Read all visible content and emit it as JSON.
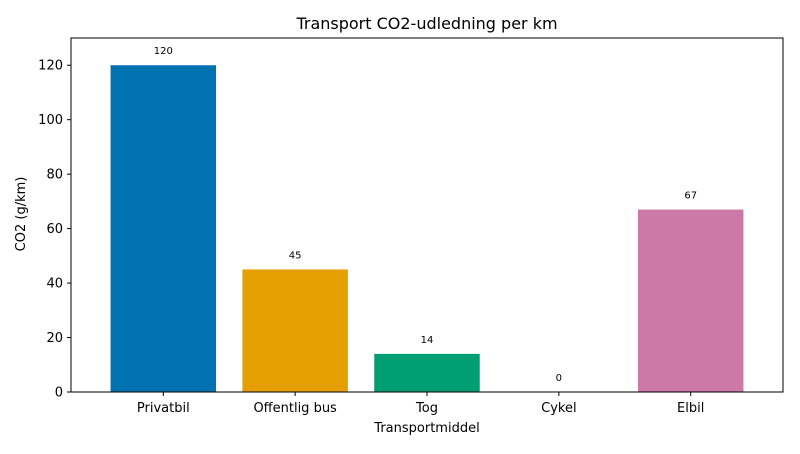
{
  "chart_data": {
    "type": "bar",
    "title": "Transport CO2-udledning per km",
    "xlabel": "Transportmiddel",
    "ylabel": "CO2 (g/km)",
    "categories": [
      "Privatbil",
      "Offentlig bus",
      "Tog",
      "Cykel",
      "Elbil"
    ],
    "values": [
      120,
      45,
      14,
      0,
      67
    ],
    "data_labels": [
      "120",
      "45",
      "14",
      "0",
      "67"
    ],
    "colors": [
      "#0072B2",
      "#E69F00",
      "#009E73",
      "#56B4E9",
      "#CC79A7"
    ],
    "ylim": [
      0,
      130
    ],
    "yticks": [
      0,
      20,
      40,
      60,
      80,
      100,
      120
    ],
    "ytick_labels": [
      "0",
      "20",
      "40",
      "60",
      "80",
      "100",
      "120"
    ],
    "grid": false,
    "legend": "none"
  }
}
